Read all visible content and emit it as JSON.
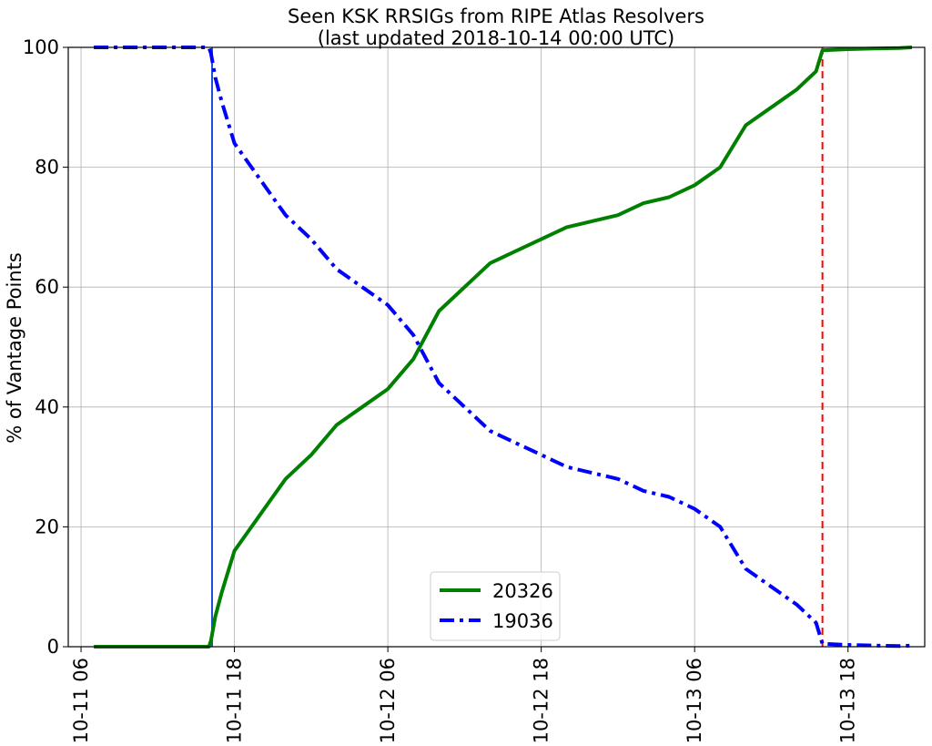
{
  "chart_data": {
    "type": "line",
    "title": "Seen KSK RRSIGs from RIPE Atlas Resolvers",
    "subtitle": "(last updated 2018-10-14 00:00 UTC)",
    "xlabel": "",
    "ylabel": "% of Vantage Points",
    "xlim": [
      "2018-10-11 05:00",
      "2018-10-14 00:00"
    ],
    "ylim": [
      0,
      100
    ],
    "x_ticks": [
      "10-11 06",
      "10-11 18",
      "10-12 06",
      "10-12 18",
      "10-13 06",
      "10-13 18"
    ],
    "y_ticks": [
      "0",
      "20",
      "40",
      "60",
      "80",
      "100"
    ],
    "grid": true,
    "legend_position": "bottom-center",
    "series": [
      {
        "name": "20326",
        "color": "#008000",
        "style": "solid",
        "x": [
          "2018-10-11 07:00",
          "2018-10-11 16:00",
          "2018-10-11 16:10",
          "2018-10-11 16:30",
          "2018-10-11 17:00",
          "2018-10-11 18:00",
          "2018-10-11 19:00",
          "2018-10-11 20:00",
          "2018-10-11 21:00",
          "2018-10-11 22:00",
          "2018-10-12 00:00",
          "2018-10-12 02:00",
          "2018-10-12 04:00",
          "2018-10-12 06:00",
          "2018-10-12 08:00",
          "2018-10-12 10:00",
          "2018-10-12 12:00",
          "2018-10-12 14:00",
          "2018-10-12 16:00",
          "2018-10-12 18:00",
          "2018-10-12 20:00",
          "2018-10-12 22:00",
          "2018-10-13 00:00",
          "2018-10-13 02:00",
          "2018-10-13 04:00",
          "2018-10-13 06:00",
          "2018-10-13 08:00",
          "2018-10-13 10:00",
          "2018-10-13 12:00",
          "2018-10-13 14:00",
          "2018-10-13 15:30",
          "2018-10-13 16:00",
          "2018-10-13 18:00",
          "2018-10-13 20:00",
          "2018-10-13 22:00",
          "2018-10-13 23:00"
        ],
        "values": [
          0,
          0,
          1,
          5,
          9,
          16,
          19,
          22,
          25,
          28,
          32,
          37,
          40,
          43,
          48,
          56,
          60,
          64,
          66,
          68,
          70,
          71,
          72,
          74,
          75,
          77,
          80,
          87,
          90,
          93,
          96,
          99.5,
          99.7,
          99.8,
          99.9,
          100
        ]
      },
      {
        "name": "19036",
        "color": "#0000ff",
        "style": "dash-dot",
        "x": [
          "2018-10-11 07:00",
          "2018-10-11 16:00",
          "2018-10-11 16:10",
          "2018-10-11 16:30",
          "2018-10-11 17:00",
          "2018-10-11 18:00",
          "2018-10-11 19:00",
          "2018-10-11 20:00",
          "2018-10-11 21:00",
          "2018-10-11 22:00",
          "2018-10-12 00:00",
          "2018-10-12 02:00",
          "2018-10-12 04:00",
          "2018-10-12 06:00",
          "2018-10-12 08:00",
          "2018-10-12 10:00",
          "2018-10-12 12:00",
          "2018-10-12 14:00",
          "2018-10-12 16:00",
          "2018-10-12 18:00",
          "2018-10-12 20:00",
          "2018-10-12 22:00",
          "2018-10-13 00:00",
          "2018-10-13 02:00",
          "2018-10-13 04:00",
          "2018-10-13 06:00",
          "2018-10-13 08:00",
          "2018-10-13 10:00",
          "2018-10-13 12:00",
          "2018-10-13 14:00",
          "2018-10-13 15:30",
          "2018-10-13 16:00",
          "2018-10-13 18:00",
          "2018-10-13 20:00",
          "2018-10-13 22:00",
          "2018-10-13 23:00"
        ],
        "values": [
          100,
          100,
          99,
          95,
          91,
          84,
          81,
          78,
          75,
          72,
          68,
          63,
          60,
          57,
          52,
          44,
          40,
          36,
          34,
          32,
          30,
          29,
          28,
          26,
          25,
          23,
          20,
          13,
          10,
          7,
          4,
          0.5,
          0.3,
          0.2,
          0.1,
          0.2
        ]
      }
    ],
    "vertical_lines": [
      {
        "x": "2018-10-11 16:15",
        "color": "#1f4fd8",
        "style": "solid"
      },
      {
        "x": "2018-10-13 16:00",
        "color": "#ff0000",
        "style": "dashed"
      }
    ]
  }
}
